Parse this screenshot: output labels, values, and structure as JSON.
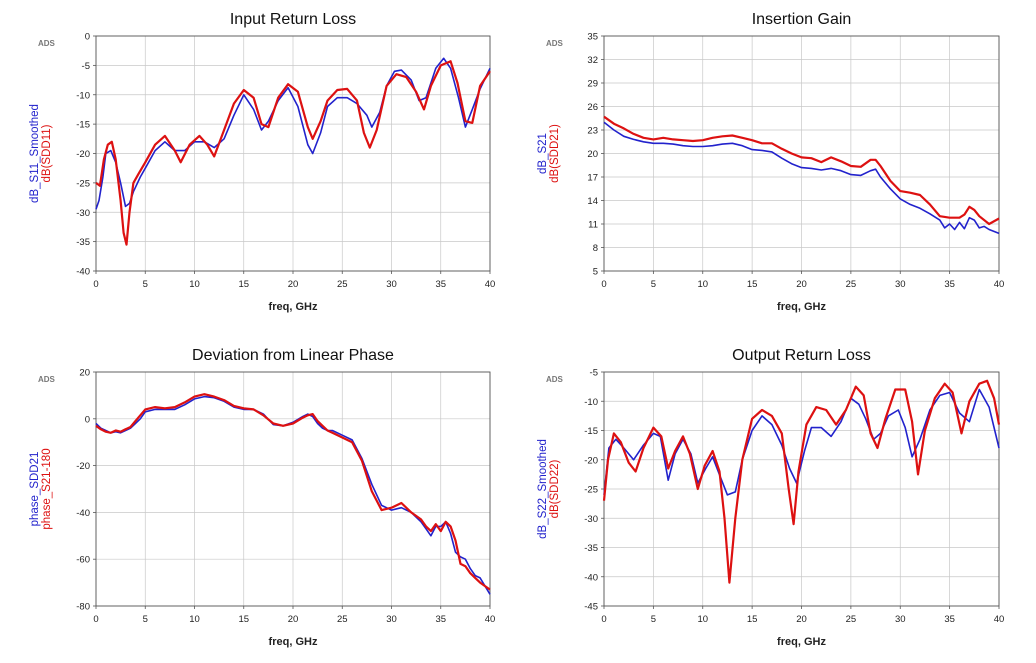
{
  "colors": {
    "series_a": "#2222cc",
    "series_b": "#dd1111",
    "grid": "#c8c8c8"
  },
  "chart_data": [
    {
      "type": "line",
      "title": "Input Return Loss",
      "corner_label": "ADS",
      "xlabel": "freq, GHz",
      "xlim": [
        0,
        40
      ],
      "xticks": [
        0,
        5,
        10,
        15,
        20,
        25,
        30,
        35,
        40
      ],
      "ylim": [
        -40,
        0
      ],
      "yticks": [
        -40,
        -35,
        -30,
        -25,
        -20,
        -15,
        -10,
        -5,
        0
      ],
      "grid": true,
      "series": [
        {
          "name": "dB_S11_Smoothed",
          "color": "#2222cc",
          "x": [
            0,
            0.3,
            0.7,
            1.0,
            1.5,
            2.0,
            2.5,
            3.0,
            3.4,
            3.8,
            4.5,
            5.0,
            6.0,
            7.0,
            8.0,
            9.0,
            10.0,
            11.0,
            12.0,
            13.0,
            14.0,
            15.0,
            16.0,
            16.8,
            17.5,
            18.5,
            19.5,
            20.5,
            21.5,
            22.0,
            22.8,
            23.5,
            24.5,
            25.5,
            26.5,
            27.5,
            28.0,
            28.8,
            29.5,
            30.3,
            31.0,
            32.0,
            32.8,
            33.5,
            34.5,
            35.3,
            36.0,
            36.8,
            37.5,
            38.2,
            39.0,
            40.0
          ],
          "y": [
            -29.5,
            -28.0,
            -24.0,
            -20.0,
            -19.5,
            -21.5,
            -25.0,
            -29.0,
            -28.5,
            -26.5,
            -24.0,
            -22.5,
            -19.5,
            -18.0,
            -19.5,
            -19.5,
            -18.0,
            -18.0,
            -19.0,
            -17.5,
            -13.5,
            -10.0,
            -12.5,
            -16.0,
            -14.5,
            -11.0,
            -8.8,
            -12.0,
            -18.5,
            -20.0,
            -16.5,
            -12.0,
            -10.5,
            -10.5,
            -11.5,
            -13.5,
            -15.5,
            -13.0,
            -8.5,
            -6.0,
            -5.8,
            -7.5,
            -11.0,
            -10.5,
            -5.5,
            -3.8,
            -5.5,
            -10.5,
            -15.5,
            -12.5,
            -9.0,
            -5.5
          ]
        },
        {
          "name": "dB(SDD11)",
          "color": "#dd1111",
          "x": [
            0,
            0.4,
            0.8,
            1.2,
            1.6,
            2.0,
            2.5,
            2.8,
            3.1,
            3.4,
            3.8,
            4.3,
            5.0,
            6.0,
            7.0,
            8.0,
            8.6,
            9.5,
            10.5,
            11.3,
            12.0,
            13.0,
            14.0,
            15.0,
            16.0,
            16.8,
            17.5,
            18.5,
            19.5,
            20.5,
            21.5,
            22.0,
            22.8,
            23.5,
            24.5,
            25.5,
            26.5,
            27.2,
            27.8,
            28.5,
            29.5,
            30.5,
            31.5,
            32.5,
            33.3,
            34.0,
            35.0,
            36.0,
            36.7,
            37.5,
            38.2,
            39.0,
            40.0
          ],
          "y": [
            -25.0,
            -25.5,
            -21.0,
            -18.5,
            -18.0,
            -21.0,
            -28.0,
            -33.5,
            -35.5,
            -30.0,
            -25.0,
            -23.5,
            -21.5,
            -18.5,
            -17.0,
            -19.5,
            -21.5,
            -18.5,
            -17.0,
            -18.5,
            -20.5,
            -16.0,
            -11.5,
            -9.2,
            -10.5,
            -15.0,
            -15.5,
            -10.5,
            -8.2,
            -9.5,
            -15.5,
            -17.5,
            -14.5,
            -11.0,
            -9.2,
            -9.0,
            -11.0,
            -16.5,
            -19.0,
            -16.0,
            -8.5,
            -6.5,
            -7.0,
            -9.5,
            -12.5,
            -8.5,
            -5.0,
            -4.3,
            -8.0,
            -14.5,
            -14.8,
            -8.5,
            -6.0
          ]
        }
      ]
    },
    {
      "type": "line",
      "title": "Insertion Gain",
      "corner_label": "ADS",
      "xlabel": "freq, GHz",
      "xlim": [
        0,
        40
      ],
      "xticks": [
        0,
        5,
        10,
        15,
        20,
        25,
        30,
        35,
        40
      ],
      "ylim": [
        5,
        35
      ],
      "yticks": [
        5,
        8,
        11,
        14,
        17,
        20,
        23,
        26,
        29,
        32,
        35
      ],
      "grid": true,
      "series": [
        {
          "name": "dB_S21",
          "color": "#2222cc",
          "x": [
            0,
            1,
            2,
            3,
            4,
            5,
            6,
            7,
            8,
            9,
            10,
            11,
            12,
            13,
            14,
            15,
            16,
            17,
            18,
            19,
            20,
            21,
            22,
            23,
            24,
            25,
            26,
            27,
            27.5,
            28,
            29,
            30,
            31,
            32,
            33,
            34,
            34.5,
            35,
            35.5,
            36,
            36.5,
            37,
            37.5,
            38,
            38.5,
            39,
            40
          ],
          "y": [
            24.0,
            23.0,
            22.2,
            21.8,
            21.5,
            21.3,
            21.3,
            21.2,
            21.0,
            20.9,
            20.9,
            21.0,
            21.2,
            21.3,
            21.0,
            20.5,
            20.4,
            20.2,
            19.4,
            18.7,
            18.2,
            18.1,
            17.9,
            18.1,
            17.8,
            17.3,
            17.2,
            17.8,
            18.0,
            17.0,
            15.5,
            14.2,
            13.5,
            13.0,
            12.3,
            11.5,
            10.5,
            11.0,
            10.3,
            11.2,
            10.4,
            11.8,
            11.5,
            10.5,
            10.7,
            10.3,
            9.8
          ]
        },
        {
          "name": "dB(SDD21)",
          "color": "#dd1111",
          "x": [
            0,
            1,
            2,
            3,
            4,
            5,
            6,
            7,
            8,
            9,
            10,
            11,
            12,
            13,
            14,
            15,
            16,
            17,
            18,
            19,
            20,
            21,
            22,
            23,
            24,
            25,
            26,
            27,
            27.5,
            28,
            29,
            30,
            31,
            32,
            33,
            34,
            35,
            36,
            36.5,
            37,
            37.5,
            38,
            39,
            40
          ],
          "y": [
            24.7,
            23.8,
            23.2,
            22.5,
            22.0,
            21.8,
            22.0,
            21.8,
            21.7,
            21.6,
            21.7,
            22.0,
            22.2,
            22.3,
            22.0,
            21.7,
            21.3,
            21.3,
            20.6,
            20.0,
            19.5,
            19.4,
            18.9,
            19.5,
            19.0,
            18.4,
            18.3,
            19.2,
            19.2,
            18.4,
            16.5,
            15.2,
            15.0,
            14.7,
            13.5,
            12.0,
            11.8,
            11.8,
            12.2,
            13.2,
            12.8,
            12.0,
            11.0,
            11.7
          ]
        }
      ]
    },
    {
      "type": "line",
      "title": "Deviation from Linear Phase",
      "corner_label": "ADS",
      "xlabel": "freq, GHz",
      "xlim": [
        0,
        40
      ],
      "xticks": [
        0,
        5,
        10,
        15,
        20,
        25,
        30,
        35,
        40
      ],
      "ylim": [
        -80,
        20
      ],
      "yticks": [
        -80,
        -60,
        -40,
        -20,
        0,
        20
      ],
      "grid": true,
      "series": [
        {
          "name": "phase_SDD21",
          "color": "#2222cc",
          "x": [
            0,
            0.5,
            1,
            1.5,
            2,
            2.5,
            3,
            3.5,
            4,
            4.5,
            5,
            6,
            7,
            8,
            9,
            10,
            11,
            12,
            13,
            14,
            15,
            16,
            17,
            18,
            19,
            20,
            21,
            21.5,
            22,
            22.5,
            23,
            23.5,
            24,
            25,
            26,
            27,
            28,
            29,
            30,
            31,
            32,
            33,
            33.5,
            34,
            34.5,
            35,
            35.5,
            36,
            36.5,
            37,
            37.5,
            38,
            38.5,
            39,
            40
          ],
          "y": [
            -2,
            -4,
            -5,
            -6,
            -5.5,
            -6,
            -5,
            -4,
            -2,
            0,
            3,
            4,
            4,
            4,
            6,
            8.5,
            9.5,
            9,
            7.5,
            5,
            4,
            4,
            2,
            -2.5,
            -3,
            -1.5,
            1,
            2,
            1,
            -2,
            -4,
            -5,
            -5,
            -7,
            -9,
            -17,
            -28,
            -37,
            -39,
            -38,
            -40,
            -44,
            -47,
            -50,
            -46,
            -46,
            -44,
            -49,
            -57,
            -59,
            -60,
            -64,
            -67,
            -68,
            -75
          ]
        },
        {
          "name": "phase_S21-180",
          "color": "#dd1111",
          "x": [
            0,
            0.5,
            1,
            1.5,
            2,
            2.5,
            3,
            3.5,
            4,
            4.5,
            5,
            6,
            7,
            8,
            9,
            10,
            11,
            12,
            13,
            14,
            15,
            16,
            17,
            18,
            19,
            20,
            21,
            21.5,
            22,
            22.5,
            23,
            23.5,
            24,
            25,
            26,
            27,
            28,
            29,
            30,
            31,
            32,
            33,
            33.5,
            34,
            34.5,
            35,
            35.5,
            36,
            36.5,
            37,
            37.5,
            38,
            38.5,
            39,
            40
          ],
          "y": [
            -3,
            -4.5,
            -5.5,
            -6,
            -5,
            -5.5,
            -4.5,
            -3.5,
            -1,
            1.5,
            4,
            5,
            4.5,
            5,
            7,
            9.5,
            10.5,
            9.5,
            8,
            5.5,
            4.5,
            4,
            1.5,
            -2,
            -3,
            -2,
            0.5,
            1.5,
            2,
            -1,
            -3,
            -5,
            -6,
            -8,
            -10,
            -18,
            -31,
            -39,
            -38,
            -36,
            -40,
            -43,
            -46,
            -48,
            -45,
            -48,
            -44,
            -46,
            -52,
            -62,
            -63,
            -66,
            -68,
            -70,
            -73
          ]
        }
      ]
    },
    {
      "type": "line",
      "title": "Output Return Loss",
      "corner_label": "ADS",
      "xlabel": "freq, GHz",
      "xlim": [
        0,
        40
      ],
      "xticks": [
        0,
        5,
        10,
        15,
        20,
        25,
        30,
        35,
        40
      ],
      "ylim": [
        -45,
        -5
      ],
      "yticks": [
        -45,
        -40,
        -35,
        -30,
        -25,
        -20,
        -15,
        -10,
        -5
      ],
      "grid": true,
      "series": [
        {
          "name": "dB_S22_Smoothed",
          "color": "#2222cc",
          "x": [
            0,
            0.5,
            1.2,
            2.0,
            3.0,
            4.0,
            5.0,
            5.7,
            6.5,
            7.2,
            8.0,
            8.8,
            9.5,
            10.3,
            11.0,
            11.8,
            12.5,
            13.3,
            14.0,
            15.0,
            16.0,
            17.0,
            18.0,
            18.8,
            19.5,
            20.3,
            21.0,
            22.0,
            23.0,
            24.0,
            25.0,
            25.8,
            26.5,
            27.3,
            28.0,
            28.8,
            29.8,
            30.5,
            31.2,
            32.0,
            33.0,
            34.0,
            35.0,
            36.0,
            37.0,
            38.0,
            39.0,
            40.0
          ],
          "y": [
            -26,
            -18,
            -16.5,
            -18,
            -20,
            -17.5,
            -15.5,
            -16,
            -23.5,
            -19,
            -16.5,
            -19,
            -24,
            -21.5,
            -19.5,
            -23,
            -26,
            -25.5,
            -20,
            -15,
            -12.5,
            -14,
            -17.5,
            -21.5,
            -24,
            -18.5,
            -14.5,
            -14.5,
            -16,
            -13.5,
            -9.5,
            -10.5,
            -13,
            -16.5,
            -15.5,
            -12.5,
            -11.5,
            -14.5,
            -19.5,
            -16.5,
            -11.5,
            -9,
            -8.5,
            -12,
            -13.5,
            -8,
            -11,
            -18
          ]
        },
        {
          "name": "dB(SDD22)",
          "color": "#dd1111",
          "x": [
            0,
            0.4,
            1.0,
            1.7,
            2.5,
            3.2,
            4.0,
            5.0,
            5.8,
            6.5,
            7.2,
            8.0,
            8.7,
            9.5,
            10.2,
            11.0,
            11.7,
            12.2,
            12.7,
            13.3,
            14.0,
            15.0,
            16.0,
            17.0,
            18.0,
            18.7,
            19.2,
            19.7,
            20.5,
            21.5,
            22.5,
            23.5,
            24.5,
            25.5,
            26.3,
            27.0,
            27.7,
            28.5,
            29.5,
            30.5,
            31.2,
            31.8,
            32.5,
            33.5,
            34.5,
            35.3,
            36.2,
            37.0,
            38.0,
            38.8,
            39.5,
            40.0
          ],
          "y": [
            -27,
            -20,
            -15.5,
            -17,
            -20.5,
            -22,
            -18,
            -14.5,
            -16,
            -21.5,
            -18.5,
            -16,
            -19,
            -25,
            -21,
            -18.5,
            -22,
            -30,
            -41,
            -30,
            -20,
            -13,
            -11.5,
            -12.5,
            -15.5,
            -25,
            -31,
            -22,
            -14,
            -11,
            -11.5,
            -14,
            -11.5,
            -7.5,
            -9,
            -15.5,
            -18,
            -13,
            -8,
            -8,
            -13.5,
            -22.5,
            -15,
            -9.5,
            -7,
            -8.5,
            -15.5,
            -10,
            -7,
            -6.5,
            -9.5,
            -14
          ]
        }
      ]
    }
  ]
}
